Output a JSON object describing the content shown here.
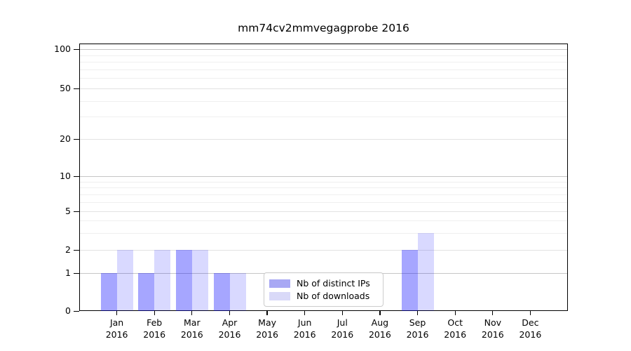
{
  "title": "mm74cv2mmvegagprobe 2016",
  "chart_data": {
    "type": "bar",
    "title": "mm74cv2mmvegagprobe 2016",
    "categories": [
      "Jan 2016",
      "Feb 2016",
      "Mar 2016",
      "Apr 2016",
      "May 2016",
      "Jun 2016",
      "Jul 2016",
      "Aug 2016",
      "Sep 2016",
      "Oct 2016",
      "Nov 2016",
      "Dec 2016"
    ],
    "series": [
      {
        "name": "Nb of distinct IPs",
        "color": "rgba(0,0,255,0.35)",
        "legend_color": "#a8a8f4",
        "values": [
          1,
          1,
          2,
          1,
          0,
          0,
          0,
          0,
          2,
          0,
          0,
          0
        ]
      },
      {
        "name": "Nb of downloads",
        "color": "rgba(0,0,255,0.15)",
        "legend_color": "#d9d9f8",
        "values": [
          2,
          2,
          2,
          1,
          0,
          0,
          0,
          0,
          3,
          0,
          0,
          0
        ]
      }
    ],
    "xlabel": "",
    "ylabel": "",
    "yscale": "log-like with 0 baseline",
    "yticks": [
      0,
      1,
      2,
      5,
      10,
      20,
      50,
      100
    ],
    "minor_yticks": [
      3,
      4,
      6,
      7,
      8,
      9,
      30,
      40,
      60,
      70,
      80,
      90
    ],
    "ylim": [
      0,
      110
    ],
    "grid": "horizontal major and minor gridlines",
    "legend_position": "inside plot, bottom center-left"
  },
  "colors": {
    "bar_distinct_ips": "#a8a8f4",
    "bar_downloads": "#d9d9f8",
    "grid_major": "#c6c6c6",
    "grid_mid": "#e2e2e2",
    "grid_minor": "#efefef",
    "axis": "#000000",
    "background": "#ffffff",
    "legend_border": "#cccccc"
  }
}
